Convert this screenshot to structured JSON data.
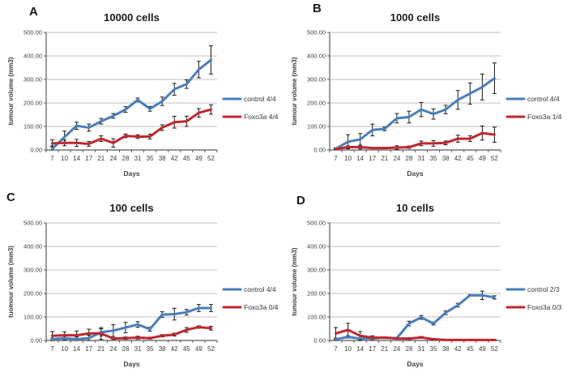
{
  "figure": {
    "background": "#ffffff"
  },
  "colors": {
    "control_line": "#4a7ebb",
    "foxo3a_line": "#c0272d",
    "gridline": "#bfbfbf",
    "axis_line": "#595959",
    "error_bar": "#1a1a1a",
    "title_text": "#1a1a1a",
    "tick_text": "#404040"
  },
  "chart_data": [
    {
      "type": "line",
      "panel_label": "A",
      "title": "10000 cells",
      "xlabel": "Days",
      "ylabel": "tumour volume (mm3)",
      "ylim": [
        0,
        500
      ],
      "ytick_step": 100,
      "ytick_labels": [
        "0.00",
        "100.00",
        "200.00",
        "300.00",
        "400.00",
        "500.00"
      ],
      "grid": true,
      "legend_position": "right",
      "categories": [
        7,
        10,
        14,
        17,
        21,
        24,
        28,
        31,
        35,
        38,
        42,
        45,
        49,
        52
      ],
      "series": [
        {
          "name": "control 4/4",
          "color": "#4a7ebb",
          "values": [
            5,
            55,
            103,
            95,
            122,
            145,
            172,
            213,
            175,
            207,
            258,
            280,
            342,
            383
          ],
          "errors": [
            12,
            25,
            15,
            15,
            12,
            10,
            12,
            8,
            10,
            18,
            25,
            18,
            35,
            60
          ]
        },
        {
          "name": "Foxo3a 4/4",
          "color": "#c0272d",
          "values": [
            28,
            30,
            30,
            26,
            48,
            30,
            60,
            57,
            57,
            95,
            118,
            122,
            158,
            172
          ],
          "errors": [
            15,
            12,
            15,
            10,
            12,
            18,
            8,
            8,
            10,
            12,
            25,
            22,
            18,
            20
          ]
        }
      ]
    },
    {
      "type": "line",
      "panel_label": "B",
      "title": "1000 cells",
      "xlabel": "Days",
      "ylabel": "tumour volume (mm3)",
      "ylim": [
        0,
        500
      ],
      "ytick_step": 100,
      "ytick_labels": [
        "0.00",
        "100.00",
        "200.00",
        "300.00",
        "400.00",
        "500.00"
      ],
      "grid": true,
      "legend_position": "right",
      "categories": [
        7,
        10,
        14,
        17,
        21,
        24,
        28,
        31,
        35,
        38,
        42,
        45,
        49,
        52
      ],
      "series": [
        {
          "name": "control 4/4",
          "color": "#4a7ebb",
          "values": [
            5,
            35,
            45,
            85,
            90,
            135,
            140,
            172,
            153,
            172,
            213,
            240,
            268,
            305
          ],
          "errors": [
            4,
            30,
            25,
            25,
            8,
            20,
            25,
            30,
            22,
            18,
            40,
            45,
            55,
            65
          ]
        },
        {
          "name": "Foxo3a 1/4",
          "color": "#c0272d",
          "values": [
            4,
            12,
            12,
            8,
            8,
            10,
            12,
            28,
            28,
            30,
            48,
            48,
            72,
            65
          ],
          "errors": [
            3,
            5,
            8,
            3,
            3,
            8,
            5,
            10,
            12,
            8,
            15,
            12,
            30,
            32
          ]
        }
      ]
    },
    {
      "type": "line",
      "panel_label": "C",
      "title": "100 cells",
      "xlabel": "Days",
      "ylabel": "tuomour volume (mm3)",
      "ylim": [
        0,
        500
      ],
      "ytick_step": 100,
      "ytick_labels": [
        "0.00",
        "100.00",
        "200.00",
        "300.00",
        "400.00",
        "500.00"
      ],
      "grid": true,
      "legend_position": "right",
      "categories": [
        7,
        10,
        14,
        17,
        21,
        24,
        28,
        31,
        35,
        38,
        42,
        45,
        49,
        52
      ],
      "series": [
        {
          "name": "control 4/4",
          "color": "#4a7ebb",
          "values": [
            5,
            10,
            5,
            10,
            35,
            42,
            55,
            68,
            48,
            110,
            112,
            120,
            138,
            138
          ],
          "errors": [
            5,
            8,
            10,
            12,
            15,
            25,
            22,
            12,
            8,
            12,
            25,
            12,
            15,
            15
          ]
        },
        {
          "name": "Foxo3a 0/4",
          "color": "#c0272d",
          "values": [
            20,
            22,
            22,
            30,
            30,
            8,
            10,
            12,
            10,
            20,
            25,
            45,
            57,
            52
          ],
          "errors": [
            18,
            15,
            18,
            18,
            25,
            4,
            5,
            6,
            4,
            5,
            6,
            10,
            5,
            8
          ]
        }
      ]
    },
    {
      "type": "line",
      "panel_label": "D",
      "title": "10 cells",
      "xlabel": "Days",
      "ylabel": "tumour volume (mm3)",
      "ylim": [
        0,
        500
      ],
      "ytick_step": 100,
      "ytick_labels": [
        "0.00",
        "100.00",
        "200.00",
        "300.00",
        "400.00",
        "500.00"
      ],
      "grid": true,
      "legend_position": "right",
      "categories": [
        7,
        10,
        14,
        17,
        21,
        24,
        28,
        31,
        35,
        38,
        42,
        45,
        49,
        52
      ],
      "series": [
        {
          "name": "control 2/3",
          "color": "#4a7ebb",
          "values": [
            5,
            15,
            8,
            8,
            12,
            10,
            72,
            98,
            72,
            118,
            150,
            192,
            192,
            183
          ],
          "errors": [
            5,
            5,
            10,
            4,
            3,
            3,
            10,
            8,
            6,
            8,
            8,
            3,
            18,
            7
          ]
        },
        {
          "name": "Foxo3a 0/3",
          "color": "#c0272d",
          "values": [
            30,
            45,
            20,
            12,
            12,
            8,
            8,
            13,
            5,
            2,
            2,
            2,
            2,
            2
          ],
          "errors": [
            25,
            28,
            18,
            8,
            4,
            3,
            4,
            4,
            4,
            2,
            2,
            2,
            2,
            2
          ]
        }
      ]
    }
  ]
}
